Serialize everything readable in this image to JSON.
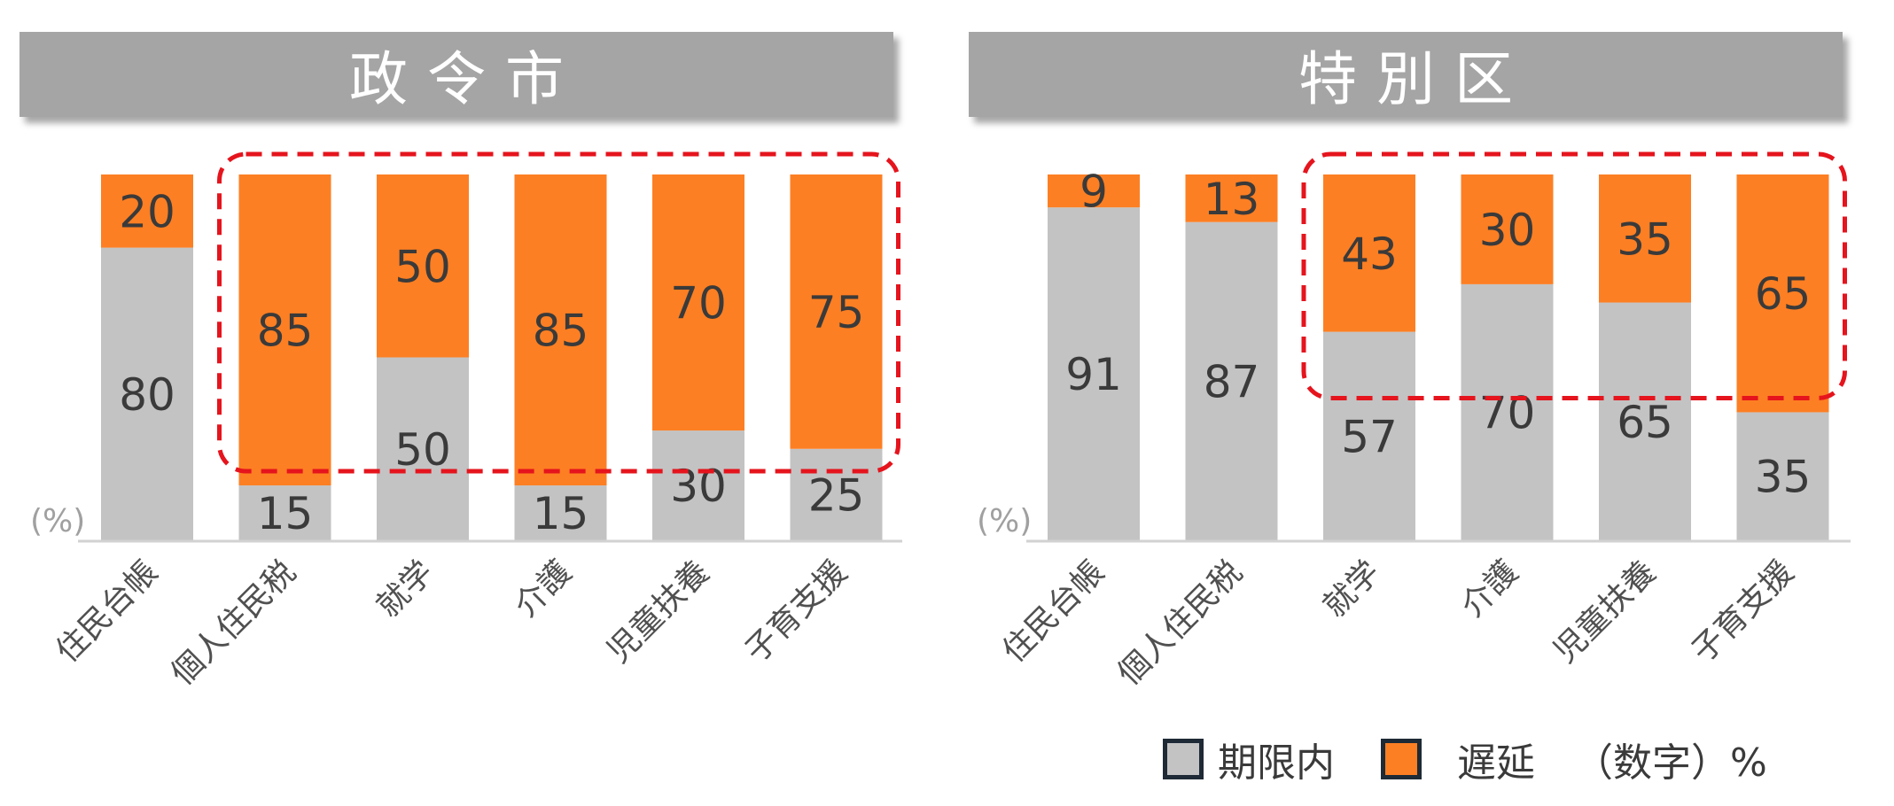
{
  "panels": [
    {
      "title": "政令市",
      "unit": "(%)"
    },
    {
      "title": "特別区",
      "unit": "(%)"
    }
  ],
  "legend": {
    "ontime": "期限内",
    "delay": "遅延",
    "note": "（数字）%"
  },
  "colors": {
    "ontime": "#c3c3c3",
    "delay": "#fd7f23",
    "highlight": "#e5141d",
    "header": "#a5a5a5"
  },
  "chart_data": [
    {
      "type": "bar",
      "stacked": true,
      "title": "政令市",
      "categories": [
        "住民台帳",
        "個人住民税",
        "就学",
        "介護",
        "児童扶養",
        "子育支援"
      ],
      "series": [
        {
          "name": "期限内",
          "values": [
            80,
            15,
            50,
            15,
            30,
            25
          ]
        },
        {
          "name": "遅延",
          "values": [
            20,
            85,
            50,
            85,
            70,
            75
          ]
        }
      ],
      "ylim": [
        0,
        100
      ],
      "ylabel": "(%)",
      "highlighted_categories": [
        "個人住民税",
        "就学",
        "介護",
        "児童扶養",
        "子育支援"
      ]
    },
    {
      "type": "bar",
      "stacked": true,
      "title": "特別区",
      "categories": [
        "住民台帳",
        "個人住民税",
        "就学",
        "介護",
        "児童扶養",
        "子育支援"
      ],
      "series": [
        {
          "name": "期限内",
          "values": [
            91,
            87,
            57,
            70,
            65,
            35
          ]
        },
        {
          "name": "遅延",
          "values": [
            9,
            13,
            43,
            30,
            35,
            65
          ]
        }
      ],
      "ylim": [
        0,
        100
      ],
      "ylabel": "(%)",
      "highlighted_categories": [
        "就学",
        "介護",
        "児童扶養",
        "子育支援"
      ]
    }
  ]
}
